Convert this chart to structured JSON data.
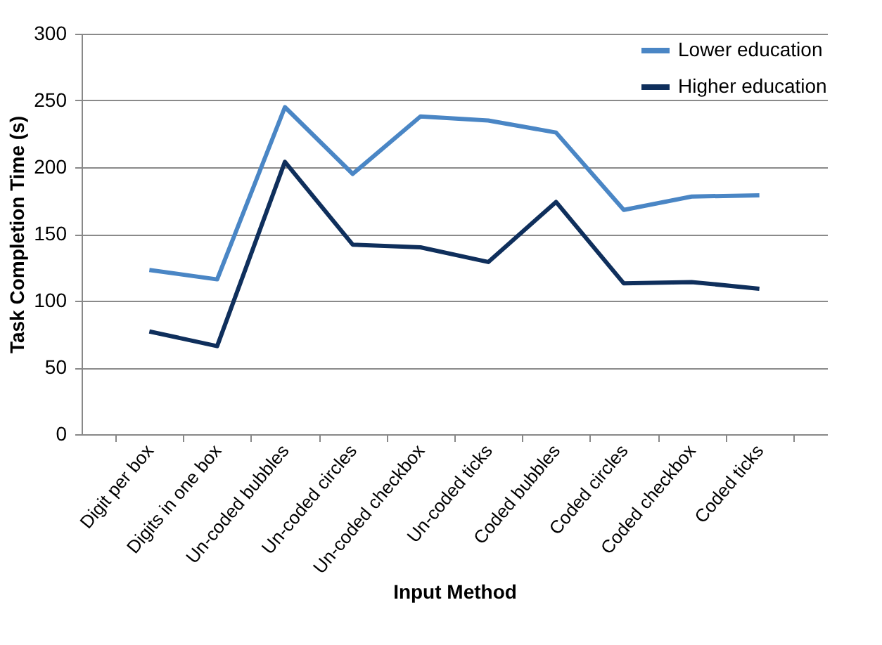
{
  "chart_data": {
    "type": "line",
    "xlabel": "Input Method",
    "ylabel": "Task Completion Time (s)",
    "categories": [
      "Digit per box",
      "Digits in one box",
      "Un-coded bubbles",
      "Un-coded circles",
      "Un-coded checkbox",
      "Un-coded ticks",
      "Coded bubbles",
      "Coded circles",
      "Coded checkbox",
      "Coded ticks"
    ],
    "series": [
      {
        "name": "Lower education",
        "color": "#4a86c5",
        "values": [
          123,
          116,
          245,
          195,
          238,
          235,
          226,
          168,
          178,
          179
        ]
      },
      {
        "name": "Higher education",
        "color": "#0f2f5c",
        "values": [
          77,
          66,
          204,
          142,
          140,
          129,
          174,
          113,
          114,
          109
        ]
      }
    ],
    "ylim": [
      0,
      300
    ],
    "yticks": [
      0,
      50,
      100,
      150,
      200,
      250,
      300
    ],
    "grid": "y",
    "legend": "top right",
    "marker": "none",
    "line_style": "solid"
  }
}
